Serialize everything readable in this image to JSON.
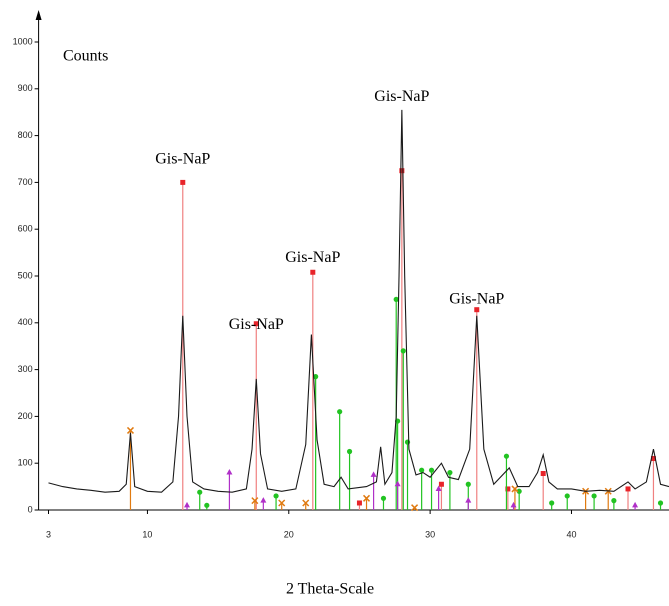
{
  "chart_data": {
    "type": "xrd",
    "y_label": "Counts",
    "x_label": "2 Theta-Scale",
    "xlim": [
      2.3,
      46.9
    ],
    "ylim": [
      0,
      1050
    ],
    "xticks": [
      3,
      10,
      20,
      30,
      40
    ],
    "yticks": [
      0,
      100,
      200,
      300,
      400,
      500,
      600,
      700,
      800,
      900,
      1000
    ],
    "pattern": {
      "color": "#1a1a1a",
      "x": [
        3,
        4,
        5,
        6,
        7,
        8,
        8.5,
        8.8,
        9.1,
        10,
        11,
        11.8,
        12.2,
        12.5,
        12.8,
        13.2,
        14,
        15,
        16,
        17,
        17.4,
        17.7,
        18.0,
        18.5,
        19.5,
        20.5,
        21.2,
        21.6,
        22.0,
        22.5,
        23.2,
        23.7,
        24.2,
        25.5,
        26.2,
        26.5,
        26.8,
        27.3,
        27.6,
        27.8,
        28.0,
        28.2,
        28.5,
        29,
        29.5,
        30,
        30.8,
        31.3,
        32,
        32.8,
        33.3,
        33.8,
        34.5,
        35.6,
        36.2,
        37,
        37.6,
        38.0,
        38.4,
        39,
        40,
        41,
        42,
        43,
        44,
        44.5,
        45.3,
        45.8,
        46.3,
        46.9
      ],
      "values": [
        58,
        50,
        45,
        42,
        38,
        40,
        55,
        165,
        50,
        40,
        38,
        60,
        200,
        415,
        200,
        60,
        45,
        40,
        38,
        45,
        130,
        280,
        120,
        45,
        40,
        45,
        140,
        375,
        150,
        55,
        50,
        70,
        45,
        50,
        60,
        135,
        55,
        80,
        200,
        500,
        855,
        500,
        130,
        75,
        80,
        70,
        100,
        70,
        65,
        130,
        415,
        130,
        55,
        90,
        50,
        50,
        80,
        118,
        60,
        45,
        45,
        40,
        42,
        40,
        60,
        45,
        60,
        130,
        55,
        50
      ]
    },
    "sticks": [
      {
        "color": "#e8242a",
        "line": "#f08080",
        "marker": "square",
        "x": [
          12.5,
          17.7,
          21.7,
          28.0,
          33.3,
          25.0,
          30.8,
          35.5,
          38.0,
          44.0,
          45.8
        ],
        "values": [
          700,
          398,
          508,
          725,
          428,
          15,
          55,
          45,
          78,
          45,
          110
        ]
      },
      {
        "color": "#22c322",
        "line": "#22c322",
        "marker": "circle",
        "x": [
          13.7,
          14.2,
          19.1,
          21.9,
          23.6,
          24.3,
          26.7,
          27.6,
          27.7,
          28.1,
          28.4,
          29.4,
          30.1,
          31.4,
          32.7,
          35.4,
          36.3,
          38.6,
          39.7,
          41.6,
          43.0,
          46.3
        ],
        "values": [
          38,
          10,
          30,
          285,
          210,
          125,
          25,
          450,
          190,
          340,
          145,
          85,
          85,
          80,
          55,
          115,
          40,
          15,
          30,
          30,
          20,
          15
        ]
      },
      {
        "color": "#e07a10",
        "line": "#e07a10",
        "marker": "cross",
        "x": [
          8.8,
          17.6,
          19.5,
          21.2,
          25.5,
          28.9,
          36.0,
          41.0,
          42.6
        ],
        "values": [
          170,
          20,
          15,
          15,
          25,
          5,
          45,
          40,
          40
        ]
      },
      {
        "color": "#b030c8",
        "line": "#b030c8",
        "marker": "triangle",
        "x": [
          12.8,
          15.8,
          18.2,
          26.0,
          27.7,
          30.6,
          32.7,
          35.9,
          44.5
        ],
        "values": [
          10,
          80,
          20,
          75,
          55,
          45,
          20,
          10,
          10
        ]
      }
    ],
    "annotations": [
      {
        "text": "Gis-NaP",
        "x": 12.5,
        "y": 748
      },
      {
        "text": "Gis-NaP",
        "x": 17.7,
        "y": 395
      },
      {
        "text": "Gis-NaP",
        "x": 21.7,
        "y": 538
      },
      {
        "text": "Gis-NaP",
        "x": 28.0,
        "y": 882
      },
      {
        "text": "Gis-NaP",
        "x": 33.3,
        "y": 449
      }
    ]
  }
}
